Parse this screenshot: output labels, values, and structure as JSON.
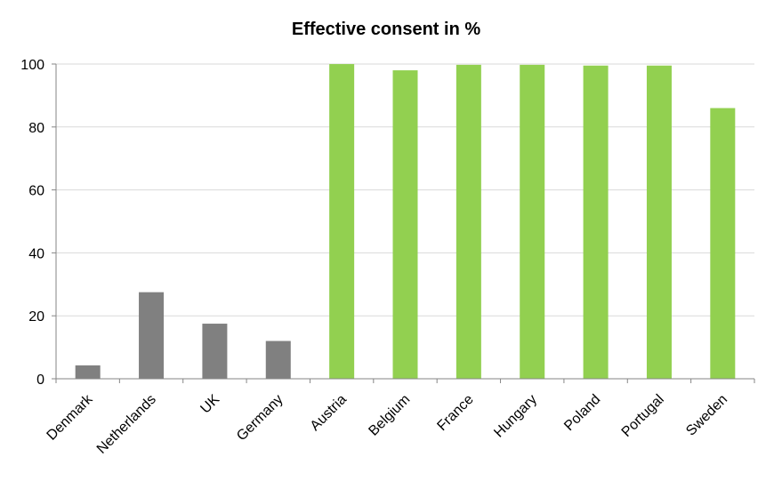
{
  "chart_data": {
    "type": "bar",
    "title": "Effective consent in %",
    "xlabel": "",
    "ylabel": "",
    "ylim": [
      0,
      100
    ],
    "yticks": [
      0,
      20,
      40,
      60,
      80,
      100
    ],
    "grid": true,
    "legend": "none",
    "categories": [
      "Denmark",
      "Netherlands",
      "UK",
      "Germany",
      "Austria",
      "Belgium",
      "France",
      "Hungary",
      "Poland",
      "Portugal",
      "Sweden"
    ],
    "values": [
      4.25,
      27.5,
      17.5,
      12,
      99.98,
      98,
      99.75,
      99.75,
      99.5,
      99.5,
      86
    ],
    "bar_colors": [
      "#808080",
      "#808080",
      "#808080",
      "#808080",
      "#92d050",
      "#92d050",
      "#92d050",
      "#92d050",
      "#92d050",
      "#92d050",
      "#92d050"
    ],
    "colors": {
      "grid": "#d9d9d9",
      "axis": "#868686"
    }
  }
}
